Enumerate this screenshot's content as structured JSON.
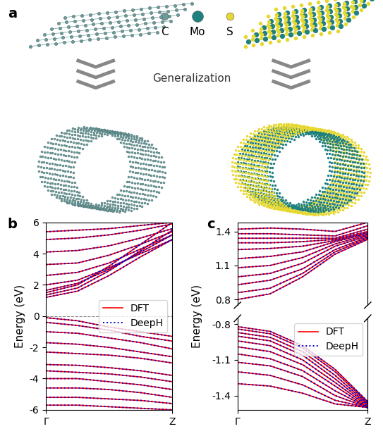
{
  "diagram": {
    "label": "a",
    "caption": "Generalization",
    "elements": [
      {
        "symbol": "C",
        "color": "#6b9a9a"
      },
      {
        "symbol": "Mo",
        "color": "#1f8080"
      },
      {
        "symbol": "S",
        "color": "#e6d830"
      }
    ]
  },
  "chart_data": [
    {
      "type": "line",
      "label": "b",
      "ylabel": "Energy (eV)",
      "x": [
        0,
        0.25,
        0.5,
        0.75,
        1
      ],
      "xlim": [
        0,
        1
      ],
      "xticks": [
        {
          "value": 0,
          "label": "Γ"
        },
        {
          "value": 1,
          "label": "Z"
        }
      ],
      "ylim": [
        -6,
        6
      ],
      "yticks": [
        -6,
        -4,
        -2,
        0,
        2,
        4,
        6
      ],
      "fermi_level": 0,
      "legend": "center right",
      "series": [
        {
          "name": "DFT",
          "color": "#ff0000",
          "line_style": "solid"
        },
        {
          "name": "DeepH",
          "color": "#0000cc",
          "line_style": "dotted"
        }
      ],
      "bands": [
        [
          1.2,
          1.6,
          2.6,
          3.8,
          4.9
        ],
        [
          1.35,
          1.8,
          2.9,
          4.2,
          5.5
        ],
        [
          1.5,
          2.0,
          3.2,
          4.6,
          6.0
        ],
        [
          1.65,
          2.1,
          3.0,
          4.1,
          5.2
        ],
        [
          2.0,
          2.3,
          3.1,
          4.0,
          4.9
        ],
        [
          2.6,
          2.8,
          3.4,
          4.3,
          5.2
        ],
        [
          3.3,
          3.4,
          3.9,
          4.6,
          5.4
        ],
        [
          4.1,
          4.2,
          4.5,
          5.0,
          5.6
        ],
        [
          4.9,
          5.0,
          5.2,
          5.5,
          5.9
        ],
        [
          5.4,
          5.5,
          5.6,
          5.8,
          6.0
        ],
        [
          -0.1,
          -0.3,
          -0.7,
          -1.0,
          -1.3
        ],
        [
          -0.4,
          -0.6,
          -0.9,
          -1.3,
          -1.6
        ],
        [
          -1.0,
          -1.1,
          -1.4,
          -1.7,
          -2.1
        ],
        [
          -1.7,
          -1.8,
          -2.0,
          -2.3,
          -2.6
        ],
        [
          -2.3,
          -2.4,
          -2.5,
          -2.7,
          -3.0
        ],
        [
          -3.1,
          -3.15,
          -3.3,
          -3.5,
          -3.8
        ],
        [
          -3.5,
          -3.6,
          -3.7,
          -3.9,
          -4.2
        ],
        [
          -4.0,
          -4.0,
          -4.2,
          -4.4,
          -4.7
        ],
        [
          -4.6,
          -4.6,
          -4.7,
          -4.9,
          -5.2
        ],
        [
          -5.2,
          -5.2,
          -5.3,
          -5.4,
          -5.6
        ],
        [
          -5.7,
          -5.7,
          -5.8,
          -5.9,
          -6.0
        ]
      ]
    },
    {
      "type": "line",
      "label": "c",
      "ylabel": "Energy (eV)",
      "x": [
        0,
        0.25,
        0.5,
        0.75,
        1
      ],
      "xlim": [
        0,
        1
      ],
      "xticks": [
        {
          "value": 0,
          "label": "Γ"
        },
        {
          "value": 1,
          "label": "Z"
        }
      ],
      "legend": "upper right",
      "series": [
        {
          "name": "DFT",
          "color": "#ff0000",
          "line_style": "solid"
        },
        {
          "name": "DeepH",
          "color": "#0000cc",
          "line_style": "dotted"
        }
      ],
      "parts": [
        {
          "ylim": [
            0.75,
            1.48
          ],
          "yticks": [
            0.8,
            1.1,
            1.4
          ],
          "bands": [
            [
              0.8,
              0.85,
              1.0,
              1.2,
              1.33
            ],
            [
              0.86,
              0.9,
              1.03,
              1.22,
              1.34
            ],
            [
              0.93,
              0.97,
              1.07,
              1.24,
              1.35
            ],
            [
              1.0,
              1.03,
              1.12,
              1.27,
              1.36
            ],
            [
              1.08,
              1.1,
              1.17,
              1.29,
              1.37
            ],
            [
              1.16,
              1.18,
              1.22,
              1.31,
              1.38
            ],
            [
              1.24,
              1.25,
              1.27,
              1.32,
              1.39
            ],
            [
              1.3,
              1.3,
              1.31,
              1.33,
              1.4
            ],
            [
              1.34,
              1.34,
              1.34,
              1.34,
              1.42
            ],
            [
              1.38,
              1.38,
              1.37,
              1.36,
              1.45
            ],
            [
              1.42,
              1.43,
              1.42,
              1.4,
              1.48
            ]
          ]
        },
        {
          "ylim": [
            -1.52,
            -0.75
          ],
          "yticks": [
            -0.8,
            -1.1,
            -1.4
          ],
          "bands": [
            [
              -0.82,
              -0.86,
              -0.98,
              -1.18,
              -1.45
            ],
            [
              -0.84,
              -0.88,
              -1.0,
              -1.2,
              -1.46
            ],
            [
              -0.87,
              -0.91,
              -1.03,
              -1.23,
              -1.47
            ],
            [
              -0.9,
              -0.94,
              -1.06,
              -1.26,
              -1.48
            ],
            [
              -0.94,
              -0.98,
              -1.1,
              -1.29,
              -1.49
            ],
            [
              -0.99,
              -1.03,
              -1.14,
              -1.32,
              -1.5
            ],
            [
              -1.05,
              -1.09,
              -1.19,
              -1.36,
              -1.5
            ],
            [
              -1.12,
              -1.15,
              -1.24,
              -1.4,
              -1.5
            ],
            [
              -1.2,
              -1.23,
              -1.31,
              -1.44,
              -1.5
            ],
            [
              -1.3,
              -1.32,
              -1.38,
              -1.47,
              -1.5
            ]
          ]
        }
      ]
    }
  ]
}
